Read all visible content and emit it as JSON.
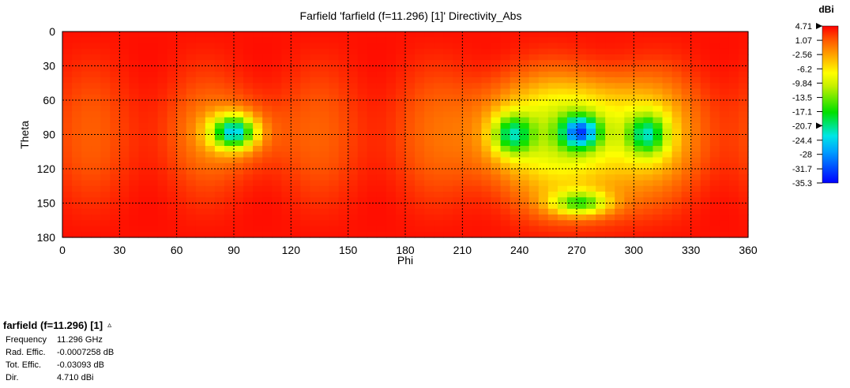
{
  "chart_data": {
    "type": "heatmap",
    "title": "Farfield 'farfield (f=11.296) [1]' Directivity_Abs",
    "xlabel": "Phi",
    "ylabel": "Theta",
    "xlim": [
      0,
      360
    ],
    "ylim": [
      0,
      180
    ],
    "y_inverted": true,
    "x_ticks": [
      "0",
      "30",
      "60",
      "90",
      "120",
      "150",
      "180",
      "210",
      "240",
      "270",
      "300",
      "330",
      "360"
    ],
    "y_ticks": [
      "0",
      "30",
      "60",
      "90",
      "120",
      "150",
      "180"
    ],
    "grid": true,
    "grid_style": "dashed",
    "colorbar": {
      "unit": "dBi",
      "ticks": [
        "4.71",
        "1.07",
        "-2.56",
        "-6.2",
        "-9.84",
        "-13.5",
        "-17.1",
        "-20.7",
        "-24.4",
        "-28",
        "-31.7",
        "-35.3"
      ],
      "min": -35.3,
      "max": 4.71,
      "markers": [
        4.71,
        -20.7
      ],
      "position": "right"
    },
    "grid_size": {
      "nx": 72,
      "ny": 36,
      "dphi": 5,
      "dtheta": 5
    },
    "features": {
      "baseline_dBi": 2.0,
      "pole_dBi": 4.0,
      "ripple_amplitude": 1.2,
      "ripple_period_deg": 60,
      "nulls": [
        {
          "phi": 90,
          "theta": 88,
          "depth_dBi": -21,
          "width": [
            8,
            10
          ]
        },
        {
          "phi": 236,
          "theta": 90,
          "depth_dBi": -14,
          "width": [
            7,
            12
          ]
        },
        {
          "phi": 272,
          "theta": 88,
          "depth_dBi": -20,
          "width": [
            7,
            10
          ]
        },
        {
          "phi": 307,
          "theta": 90,
          "depth_dBi": -13,
          "width": [
            7,
            12
          ]
        },
        {
          "phi": 272,
          "theta": 150,
          "depth_dBi": -12,
          "width": [
            10,
            7
          ]
        }
      ],
      "depressions": [
        {
          "phi": 272,
          "theta": 60,
          "depth_dBi": -6,
          "width": [
            28,
            20
          ]
        },
        {
          "phi": 272,
          "theta": 115,
          "depth_dBi": -6,
          "width": [
            28,
            22
          ]
        },
        {
          "phi": 270,
          "theta": 88,
          "depth_dBi": -5,
          "width": [
            40,
            30
          ]
        }
      ]
    }
  },
  "info": {
    "header": "farfield (f=11.296) [1]",
    "toggle_glyph": "▵",
    "rows": [
      {
        "key": "Frequency",
        "value": "11.296 GHz"
      },
      {
        "key": "Rad. Effic.",
        "value": "-0.0007258 dB"
      },
      {
        "key": "Tot. Effic.",
        "value": "-0.03093 dB"
      },
      {
        "key": "Dir.",
        "value": "4.710 dBi"
      }
    ]
  }
}
